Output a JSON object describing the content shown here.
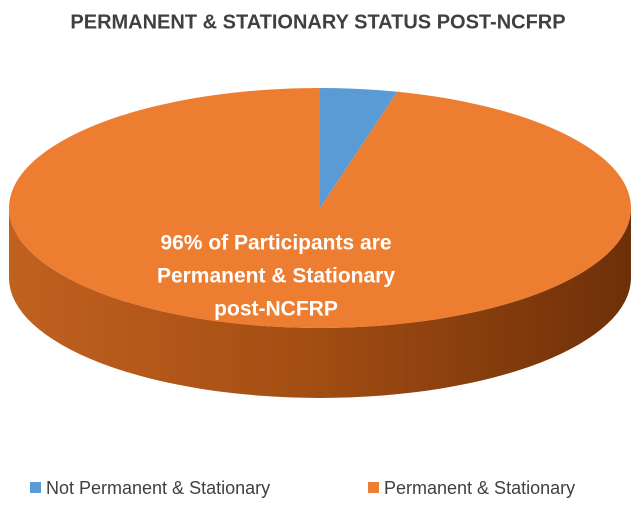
{
  "chart_data": {
    "type": "pie",
    "title": "PERMANENT & STATIONARY STATUS POST-NCFRP",
    "categories": [
      "Not Permanent & Stationary",
      "Permanent & Stationary"
    ],
    "values": [
      4,
      96
    ],
    "colors": [
      "#5b9bd5",
      "#ed7d31"
    ],
    "annotation": [
      "96% of Participants are",
      "Permanent & Stationary",
      "post-NCFRP"
    ]
  }
}
